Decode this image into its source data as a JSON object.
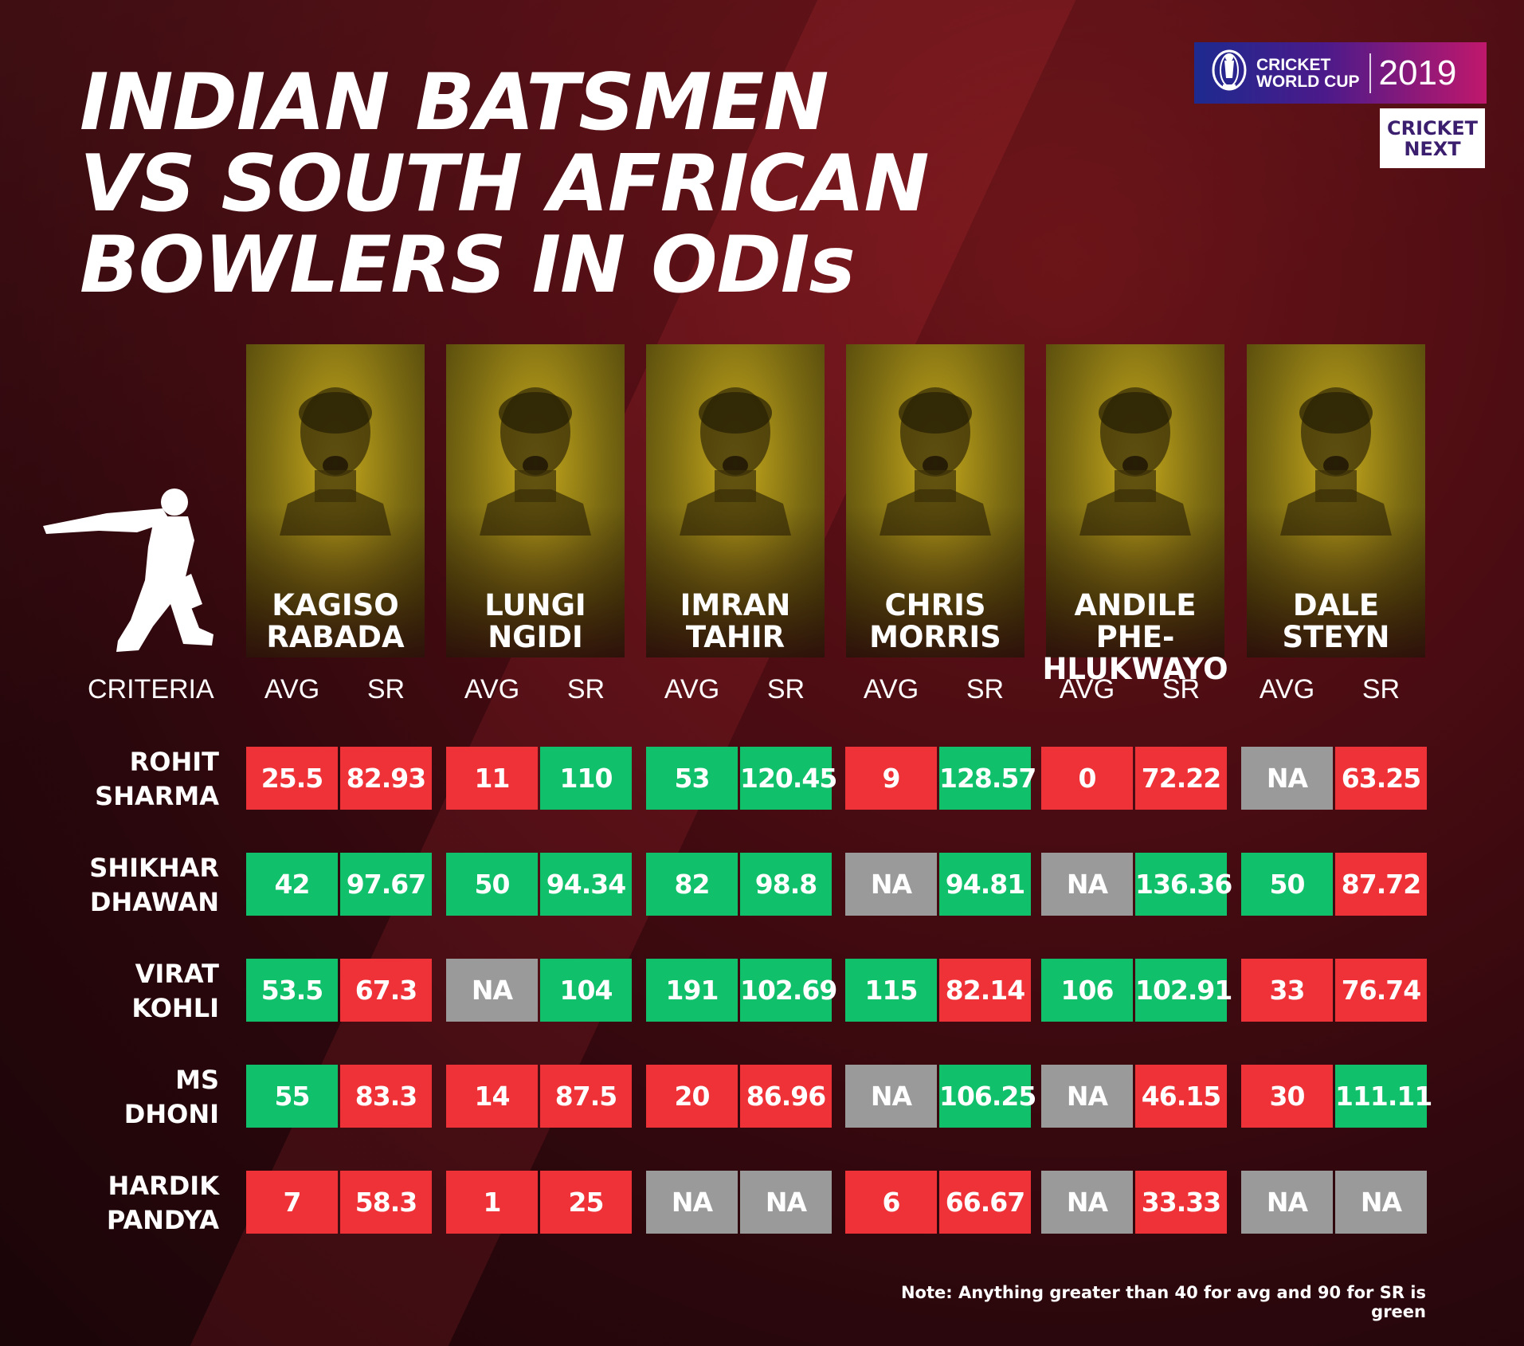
{
  "title_lines": [
    "INDIAN BATSMEN",
    "VS SOUTH AFRICAN",
    "BOWLERS IN ODIs"
  ],
  "logos": {
    "cwc_words": [
      "CRICKET",
      "WORLD CUP"
    ],
    "cwc_year": "2019",
    "cricketnext": [
      "CRICKET",
      "NEXT"
    ]
  },
  "criteria_label": "CRITERIA",
  "metric_labels": {
    "avg": "AVG",
    "sr": "SR"
  },
  "colors": {
    "red": "#ee3237",
    "green": "#11c06b",
    "na": "#9a9a9a"
  },
  "note": "Note: Anything greater than 40 for avg and 90 for SR is green",
  "chart_data": {
    "type": "table",
    "title": "INDIAN BATSMEN VS SOUTH AFRICAN BOWLERS IN ODIs",
    "columns": [
      "AVG",
      "SR"
    ],
    "bowlers": [
      {
        "name": [
          "KAGISO",
          "RABADA"
        ]
      },
      {
        "name": [
          "LUNGI",
          "NGIDI"
        ]
      },
      {
        "name": [
          "IMRAN",
          "TAHIR"
        ]
      },
      {
        "name": [
          "CHRIS",
          "MORRIS"
        ]
      },
      {
        "name": [
          "ANDILE PHE-",
          "HLUKWAYO"
        ]
      },
      {
        "name": [
          "DALE",
          "STEYN"
        ]
      }
    ],
    "batsmen": [
      {
        "name": [
          "ROHIT",
          "SHARMA"
        ],
        "values": [
          [
            "25.5",
            "82.93"
          ],
          [
            "11",
            "110"
          ],
          [
            "53",
            "120.45"
          ],
          [
            "9",
            "128.57"
          ],
          [
            "0",
            "72.22"
          ],
          [
            "NA",
            "63.25"
          ]
        ]
      },
      {
        "name": [
          "SHIKHAR",
          "DHAWAN"
        ],
        "values": [
          [
            "42",
            "97.67"
          ],
          [
            "50",
            "94.34"
          ],
          [
            "82",
            "98.8"
          ],
          [
            "NA",
            "94.81"
          ],
          [
            "NA",
            "136.36"
          ],
          [
            "50",
            "87.72"
          ]
        ]
      },
      {
        "name": [
          "VIRAT",
          "KOHLI"
        ],
        "values": [
          [
            "53.5",
            "67.3"
          ],
          [
            "NA",
            "104"
          ],
          [
            "191",
            "102.69"
          ],
          [
            "115",
            "82.14"
          ],
          [
            "106",
            "102.91"
          ],
          [
            "33",
            "76.74"
          ]
        ]
      },
      {
        "name": [
          "MS",
          "DHONI"
        ],
        "values": [
          [
            "55",
            "83.3"
          ],
          [
            "14",
            "87.5"
          ],
          [
            "20",
            "86.96"
          ],
          [
            "NA",
            "106.25"
          ],
          [
            "NA",
            "46.15"
          ],
          [
            "30",
            "111.11"
          ]
        ]
      },
      {
        "name": [
          "HARDIK",
          "PANDYA"
        ],
        "values": [
          [
            "7",
            "58.3"
          ],
          [
            "1",
            "25"
          ],
          [
            "NA",
            "NA"
          ],
          [
            "6",
            "66.67"
          ],
          [
            "NA",
            "33.33"
          ],
          [
            "NA",
            "NA"
          ]
        ]
      }
    ],
    "thresholds": {
      "avg": 40,
      "sr": 90
    }
  }
}
